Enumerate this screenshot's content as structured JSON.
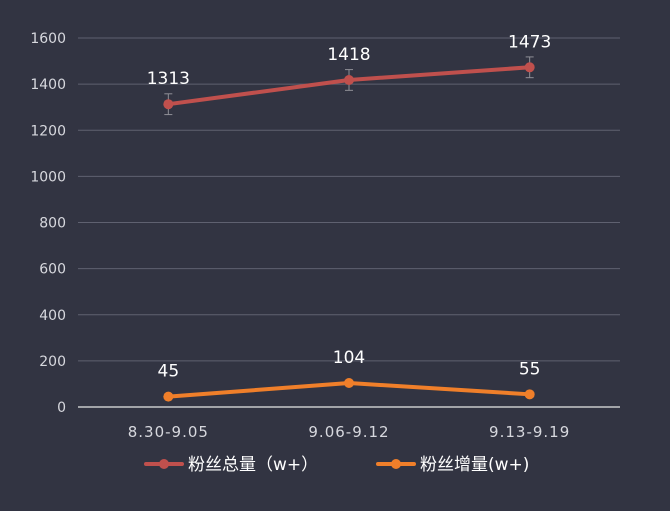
{
  "chart_data": {
    "type": "line",
    "categories": [
      "8.30-9.05",
      "9.06-9.12",
      "9.13-9.19"
    ],
    "ylim": [
      0,
      1600
    ],
    "yticks": [
      0,
      200,
      400,
      600,
      800,
      1000,
      1200,
      1400,
      1600
    ],
    "grid": true,
    "legend_position": "bottom",
    "series": [
      {
        "name": "粉丝总量（w+）",
        "values": [
          1313,
          1418,
          1473
        ],
        "error": [
          45,
          45,
          45
        ],
        "color": "#c0504d"
      },
      {
        "name": "粉丝增量(w+)",
        "values": [
          45,
          104,
          55
        ],
        "color": "#f07f2a"
      }
    ]
  }
}
